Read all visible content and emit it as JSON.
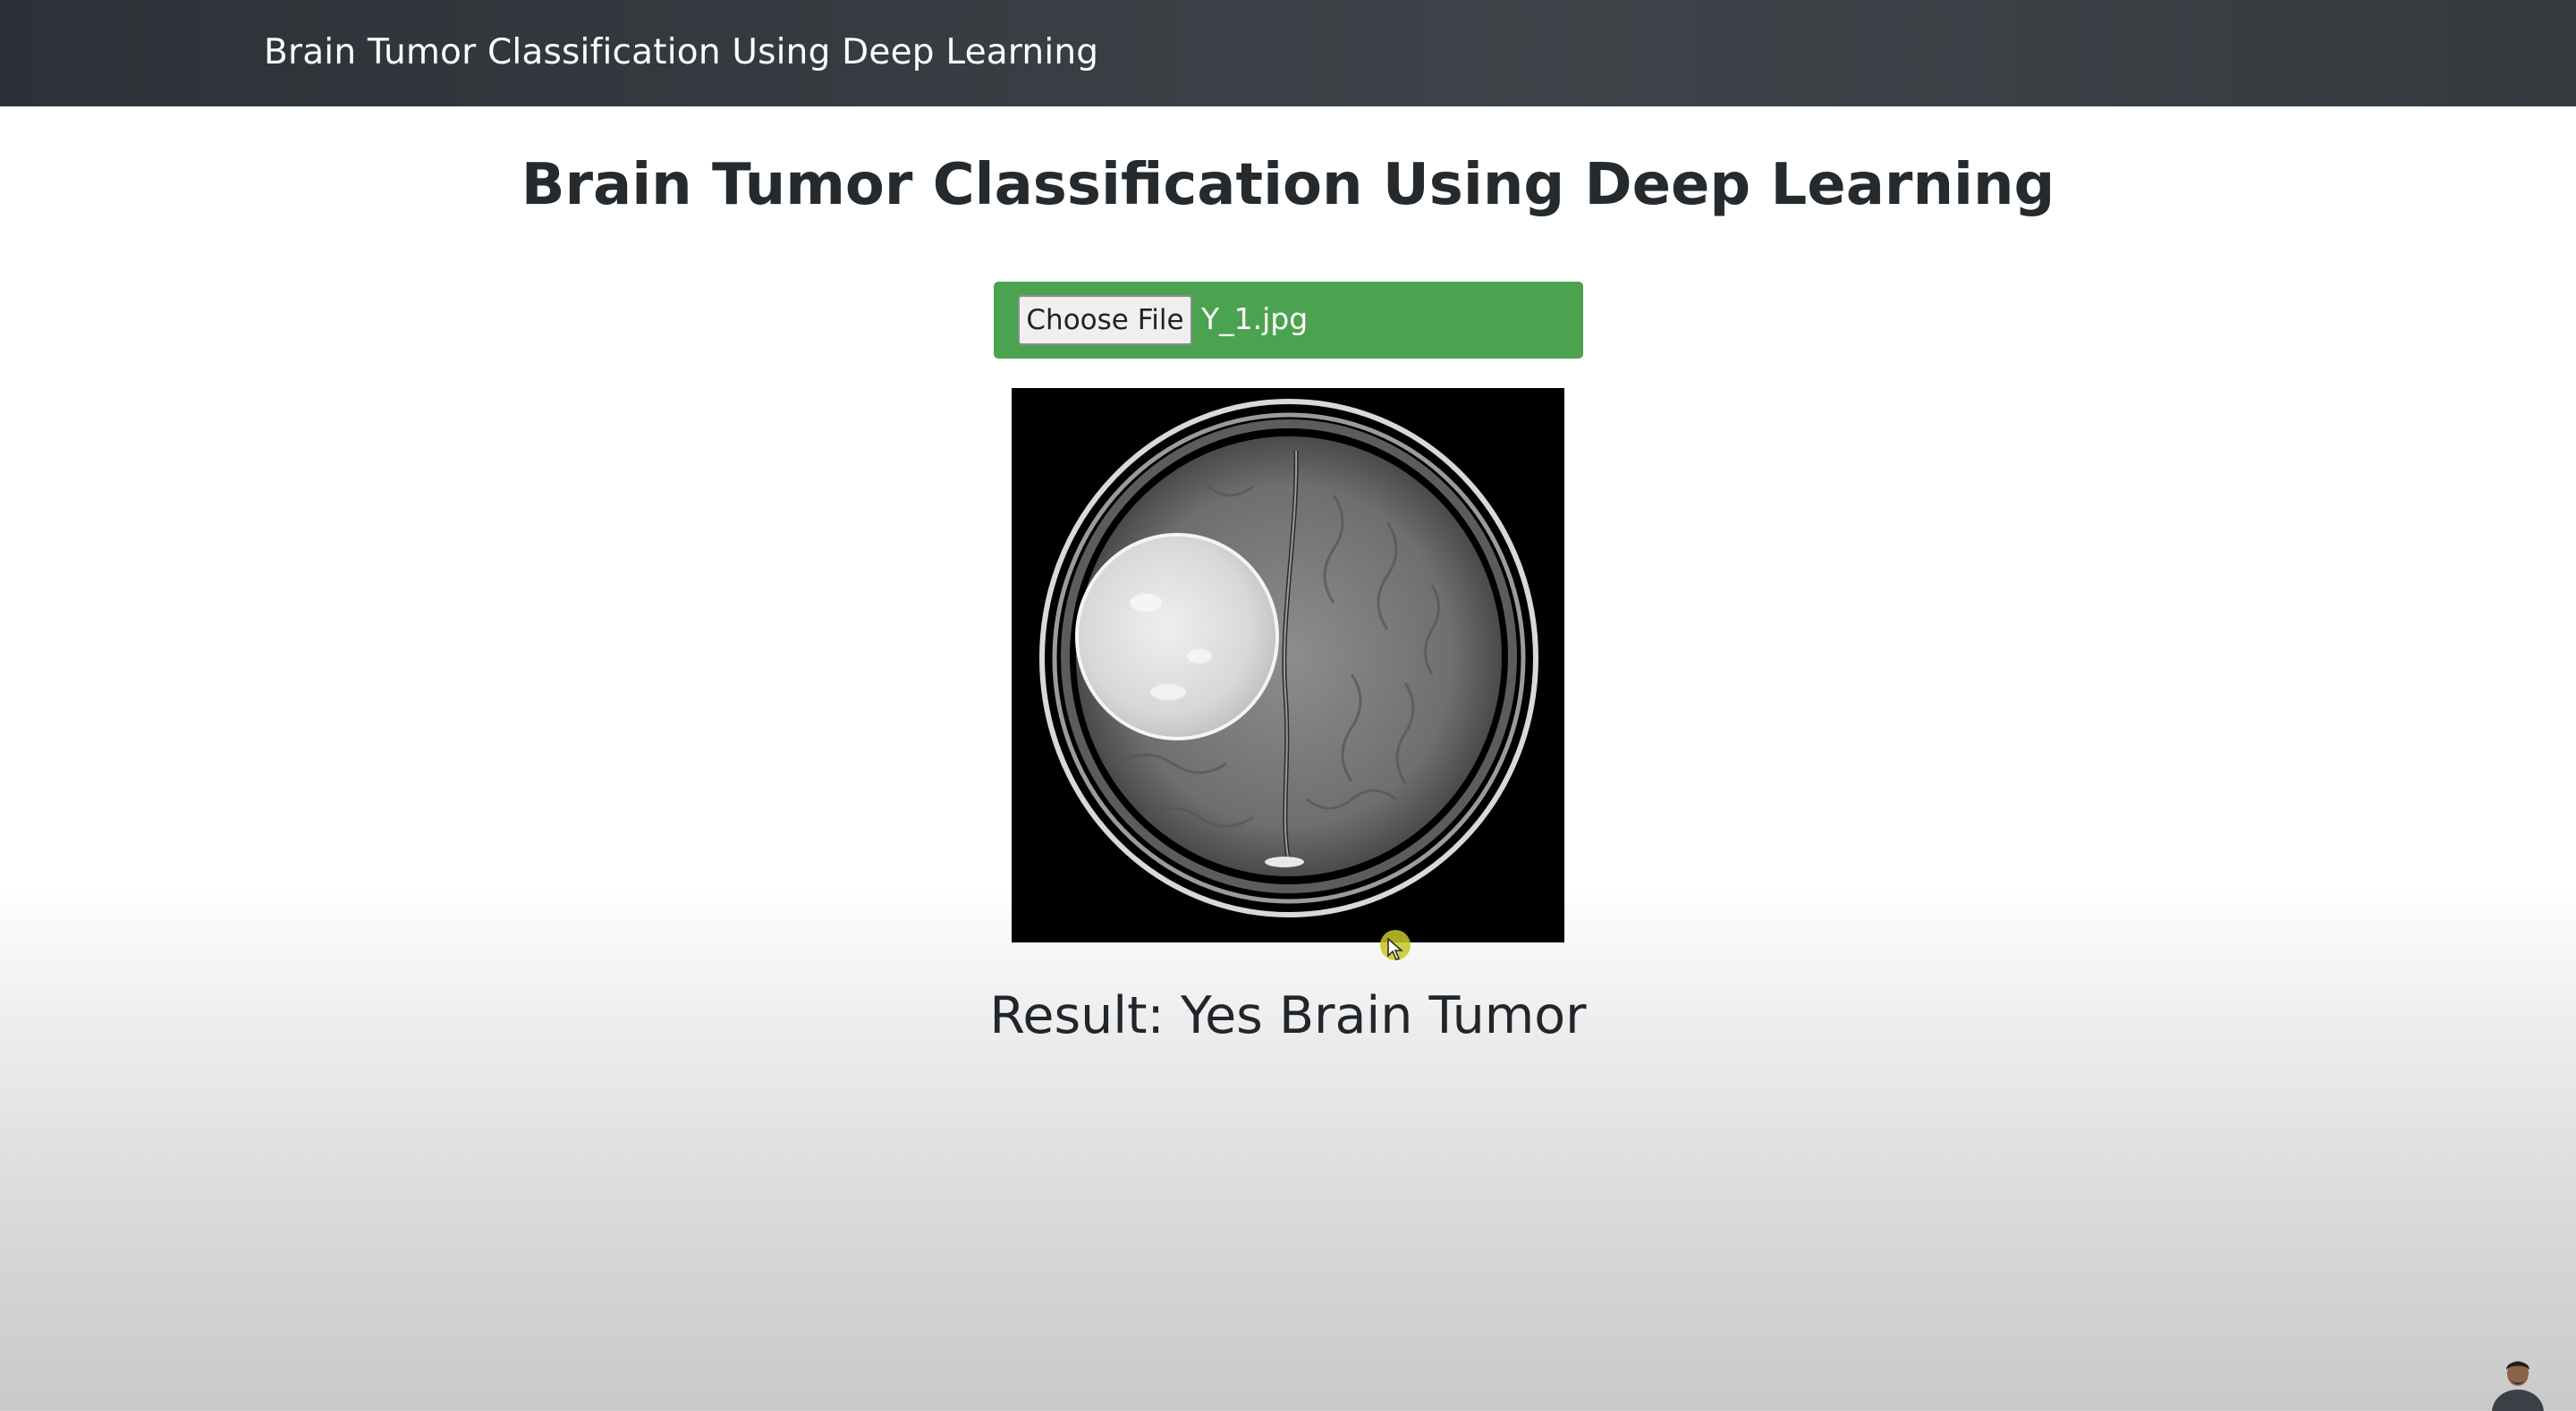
{
  "navbar": {
    "brand": "Brain Tumor Classification Using Deep Learning"
  },
  "main": {
    "title": "Brain Tumor Classification Using Deep Learning",
    "upload": {
      "button_label": "Choose File",
      "file_name": "Y_1.jpg",
      "accent_color": "#4ba34f"
    },
    "preview_image": "brain-mri-scan",
    "result": "Result: Yes Brain Tumor"
  },
  "overlay": {
    "cursor": "pointer-cursor-icon",
    "presenter": "presenter-avatar"
  }
}
